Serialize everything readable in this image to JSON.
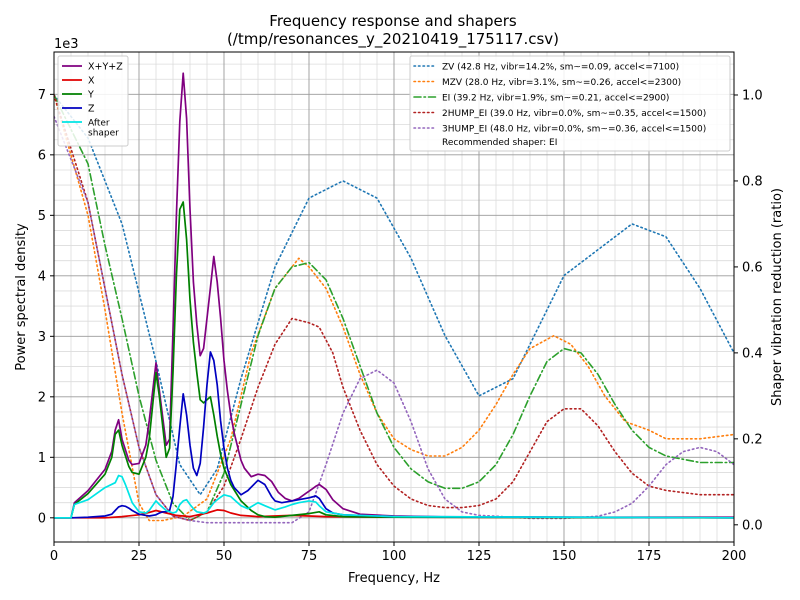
{
  "chart_data": {
    "type": "line",
    "title": "Frequency response and shapers",
    "subtitle": "(/tmp/resonances_y_20210419_175117.csv)",
    "xlabel": "Frequency, Hz",
    "ylabel": "Power spectral density",
    "y2label": "Shaper vibration reduction (ratio)",
    "y_multiplier_label": "1e3",
    "xlim": [
      0,
      200
    ],
    "ylim": [
      -0.4,
      7.7
    ],
    "y2lim": [
      -0.04,
      1.1
    ],
    "x_ticks": [
      0,
      25,
      50,
      75,
      100,
      125,
      150,
      175,
      200
    ],
    "x_tick_labels": [
      "0",
      "25",
      "50",
      "75",
      "100",
      "125",
      "150",
      "175",
      "200"
    ],
    "y_ticks": [
      0,
      1,
      2,
      3,
      4,
      5,
      6,
      7
    ],
    "y_tick_labels": [
      "0",
      "1",
      "2",
      "3",
      "4",
      "5",
      "6",
      "7"
    ],
    "y2_ticks": [
      0,
      0.2,
      0.4,
      0.6,
      0.8,
      1.0
    ],
    "y2_tick_labels": [
      "0.0",
      "0.2",
      "0.4",
      "0.6",
      "0.8",
      "1.0"
    ],
    "grid": true,
    "legend_left_placement": "upper-left",
    "legend_right_placement": "upper-right",
    "psd_series": [
      {
        "name": "X+Y+Z",
        "color": "#800080",
        "style": "solid",
        "x": [
          0,
          5,
          6,
          10,
          15,
          17,
          18,
          19,
          20,
          22,
          23,
          25,
          27,
          28,
          30,
          31,
          33,
          34,
          35,
          36,
          37,
          38,
          39,
          40,
          41,
          42,
          43,
          44,
          45,
          46,
          47,
          48,
          49,
          50,
          51,
          52,
          53,
          55,
          56,
          58,
          60,
          62,
          64,
          66,
          68,
          70,
          72,
          74,
          76,
          77,
          78,
          80,
          82,
          85,
          90,
          100,
          120,
          150,
          200
        ],
        "y": [
          0,
          0,
          0.25,
          0.45,
          0.8,
          1.1,
          1.45,
          1.62,
          1.3,
          0.95,
          0.88,
          0.9,
          1.2,
          1.6,
          2.56,
          2.1,
          1.2,
          1.3,
          3.1,
          5.0,
          6.55,
          7.35,
          6.6,
          5.1,
          3.9,
          3.2,
          2.68,
          2.8,
          3.3,
          3.8,
          4.32,
          3.9,
          3.3,
          2.6,
          2.1,
          1.7,
          1.4,
          0.95,
          0.82,
          0.68,
          0.72,
          0.7,
          0.6,
          0.42,
          0.32,
          0.28,
          0.32,
          0.4,
          0.48,
          0.52,
          0.55,
          0.47,
          0.3,
          0.15,
          0.06,
          0.03,
          0.01,
          0.01,
          0.01
        ]
      },
      {
        "name": "X",
        "color": "#e00000",
        "style": "solid",
        "x": [
          0,
          15,
          20,
          25,
          28,
          30,
          33,
          36,
          40,
          45,
          48,
          50,
          52,
          55,
          60,
          70,
          80,
          100,
          200
        ],
        "y": [
          0,
          0,
          0.02,
          0.05,
          0.09,
          0.12,
          0.08,
          0.04,
          0.02,
          0.08,
          0.13,
          0.12,
          0.08,
          0.04,
          0.02,
          0.04,
          0.02,
          0.01,
          0
        ]
      },
      {
        "name": "Y",
        "color": "#008000",
        "style": "solid",
        "x": [
          0,
          5,
          6,
          10,
          15,
          17,
          18,
          19,
          20,
          22,
          23,
          25,
          27,
          28,
          30,
          31,
          33,
          34,
          35,
          36,
          37,
          38,
          39,
          40,
          41,
          42,
          43,
          44,
          45,
          46,
          47,
          48,
          49,
          50,
          52,
          55,
          58,
          60,
          62,
          65,
          70,
          75,
          78,
          80,
          85,
          100,
          200
        ],
        "y": [
          0,
          0,
          0.22,
          0.4,
          0.72,
          1.0,
          1.38,
          1.45,
          1.2,
          0.85,
          0.75,
          0.72,
          1.0,
          1.3,
          2.4,
          2.0,
          1.0,
          1.15,
          2.4,
          4.0,
          5.1,
          5.22,
          4.6,
          3.6,
          2.9,
          2.4,
          1.95,
          1.9,
          1.95,
          2.0,
          1.7,
          1.35,
          1.05,
          0.82,
          0.55,
          0.28,
          0.12,
          0.05,
          0.02,
          0.01,
          0.04,
          0.07,
          0.1,
          0.05,
          0.02,
          0.01,
          0
        ]
      },
      {
        "name": "Z",
        "color": "#0000c0",
        "style": "solid",
        "x": [
          0,
          5,
          10,
          15,
          17,
          18,
          19,
          20,
          21,
          22,
          23,
          25,
          27,
          28,
          30,
          31,
          32,
          33,
          34,
          35,
          36,
          37,
          38,
          39,
          40,
          41,
          42,
          43,
          44,
          45,
          46,
          47,
          48,
          49,
          50,
          51,
          52,
          53,
          55,
          57,
          60,
          62,
          64,
          65,
          67,
          70,
          72,
          75,
          77,
          78,
          80,
          82,
          85,
          100,
          200
        ],
        "y": [
          0,
          0,
          0.01,
          0.03,
          0.06,
          0.12,
          0.18,
          0.2,
          0.19,
          0.16,
          0.12,
          0.06,
          0.04,
          0.03,
          0.05,
          0.08,
          0.1,
          0.1,
          0.12,
          0.35,
          0.9,
          1.5,
          2.05,
          1.7,
          1.2,
          0.82,
          0.7,
          0.9,
          1.5,
          2.2,
          2.74,
          2.6,
          2.2,
          1.6,
          1.15,
          0.82,
          0.62,
          0.5,
          0.38,
          0.45,
          0.62,
          0.55,
          0.35,
          0.28,
          0.25,
          0.28,
          0.3,
          0.33,
          0.36,
          0.32,
          0.15,
          0.08,
          0.05,
          0.02,
          0
        ]
      },
      {
        "name": "After shaper",
        "color": "#00e5e5",
        "style": "solid",
        "x": [
          0,
          5,
          6,
          10,
          15,
          18,
          19,
          20,
          21,
          22,
          23,
          25,
          27,
          28,
          30,
          31,
          33,
          35,
          36,
          37,
          38,
          39,
          40,
          41,
          42,
          44,
          45,
          47,
          48,
          50,
          52,
          55,
          57,
          60,
          62,
          65,
          68,
          70,
          72,
          75,
          77,
          78,
          80,
          85,
          100,
          200
        ],
        "y": [
          0,
          0,
          0.22,
          0.3,
          0.5,
          0.58,
          0.7,
          0.68,
          0.55,
          0.4,
          0.25,
          0.1,
          0.08,
          0.12,
          0.28,
          0.22,
          0.12,
          0.08,
          0.1,
          0.22,
          0.28,
          0.3,
          0.22,
          0.15,
          0.1,
          0.08,
          0.1,
          0.25,
          0.3,
          0.38,
          0.35,
          0.2,
          0.15,
          0.25,
          0.2,
          0.13,
          0.18,
          0.22,
          0.25,
          0.28,
          0.26,
          0.2,
          0.1,
          0.05,
          0.02,
          0
        ]
      }
    ],
    "shaper_series": [
      {
        "name": "ZV (42.8 Hz, vibr=14.2%, sm~=0.09, accel<=7100)",
        "color": "#1f77b4",
        "style": "dotted",
        "x": [
          0,
          10,
          20,
          30,
          37,
          43,
          48,
          55,
          65,
          75,
          85,
          95,
          105,
          115,
          125,
          135,
          150,
          170,
          180,
          190,
          200
        ],
        "y": [
          1,
          0.9,
          0.7,
          0.38,
          0.14,
          0.07,
          0.13,
          0.34,
          0.6,
          0.76,
          0.8,
          0.76,
          0.62,
          0.44,
          0.3,
          0.34,
          0.58,
          0.7,
          0.67,
          0.55,
          0.4
        ]
      },
      {
        "name": "MZV (28.0 Hz, vibr=3.1%, sm~=0.26, accel<=2300)",
        "color": "#ff7f0e",
        "style": "dotted",
        "x": [
          0,
          10,
          15,
          20,
          25,
          28,
          32,
          38,
          45,
          52,
          58,
          65,
          72,
          75,
          80,
          85,
          90,
          95,
          100,
          105,
          110,
          115,
          120,
          125,
          130,
          135,
          140,
          147,
          152,
          157,
          162,
          168,
          175,
          180,
          190,
          200
        ],
        "y": [
          1,
          0.72,
          0.5,
          0.26,
          0.05,
          0.01,
          0.01,
          0.02,
          0.06,
          0.2,
          0.4,
          0.55,
          0.62,
          0.6,
          0.55,
          0.46,
          0.35,
          0.26,
          0.2,
          0.175,
          0.16,
          0.16,
          0.18,
          0.22,
          0.28,
          0.35,
          0.41,
          0.44,
          0.42,
          0.37,
          0.3,
          0.24,
          0.22,
          0.2,
          0.2,
          0.21
        ]
      },
      {
        "name": "EI (39.2 Hz, vibr=1.9%, sm~=0.21, accel<=2900)",
        "color": "#2ca02c",
        "style": "dashdot",
        "x": [
          0,
          10,
          15,
          20,
          25,
          30,
          35,
          40,
          45,
          50,
          55,
          60,
          65,
          70,
          75,
          80,
          85,
          90,
          95,
          100,
          105,
          110,
          115,
          120,
          125,
          130,
          135,
          140,
          145,
          150,
          155,
          160,
          165,
          170,
          175,
          180,
          190,
          200
        ],
        "y": [
          1,
          0.84,
          0.65,
          0.48,
          0.3,
          0.15,
          0.05,
          0.01,
          0.03,
          0.12,
          0.28,
          0.44,
          0.55,
          0.6,
          0.61,
          0.57,
          0.48,
          0.37,
          0.26,
          0.18,
          0.13,
          0.1,
          0.085,
          0.085,
          0.1,
          0.14,
          0.21,
          0.3,
          0.38,
          0.41,
          0.4,
          0.35,
          0.28,
          0.22,
          0.18,
          0.16,
          0.145,
          0.145
        ]
      },
      {
        "name": "2HUMP_EI (39.0 Hz, vibr=0.0%, sm~=0.35, accel<=1500)",
        "color": "#b22222",
        "style": "dotted",
        "x": [
          0,
          10,
          15,
          20,
          25,
          30,
          35,
          40,
          45,
          50,
          55,
          60,
          65,
          70,
          75,
          78,
          82,
          85,
          90,
          95,
          100,
          105,
          110,
          115,
          120,
          125,
          130,
          135,
          140,
          145,
          150,
          155,
          160,
          165,
          170,
          175,
          180,
          190,
          200
        ],
        "y": [
          1,
          0.75,
          0.55,
          0.35,
          0.18,
          0.07,
          0.02,
          0.01,
          0.03,
          0.09,
          0.2,
          0.32,
          0.42,
          0.48,
          0.47,
          0.46,
          0.4,
          0.32,
          0.22,
          0.14,
          0.09,
          0.06,
          0.045,
          0.04,
          0.04,
          0.045,
          0.06,
          0.1,
          0.17,
          0.24,
          0.27,
          0.27,
          0.23,
          0.17,
          0.12,
          0.09,
          0.08,
          0.07,
          0.07
        ]
      },
      {
        "name": "3HUMP_EI (48.0 Hz, vibr=0.0%, sm~=0.36, accel<=1500)",
        "color": "#9467bd",
        "style": "dotted",
        "x": [
          0,
          10,
          15,
          20,
          25,
          30,
          35,
          40,
          45,
          50,
          55,
          60,
          65,
          70,
          75,
          80,
          85,
          90,
          95,
          100,
          105,
          110,
          115,
          120,
          125,
          130,
          140,
          150,
          160,
          165,
          170,
          175,
          180,
          185,
          190,
          195,
          200
        ],
        "y": [
          0.95,
          0.75,
          0.55,
          0.35,
          0.18,
          0.07,
          0.02,
          0.01,
          0.005,
          0.005,
          0.005,
          0.005,
          0.005,
          0.005,
          0.03,
          0.14,
          0.26,
          0.34,
          0.36,
          0.33,
          0.24,
          0.13,
          0.06,
          0.03,
          0.022,
          0.02,
          0.015,
          0.015,
          0.02,
          0.03,
          0.05,
          0.09,
          0.14,
          0.17,
          0.18,
          0.17,
          0.14
        ]
      }
    ],
    "recommended_shaper": "Recommended shaper: EI"
  }
}
